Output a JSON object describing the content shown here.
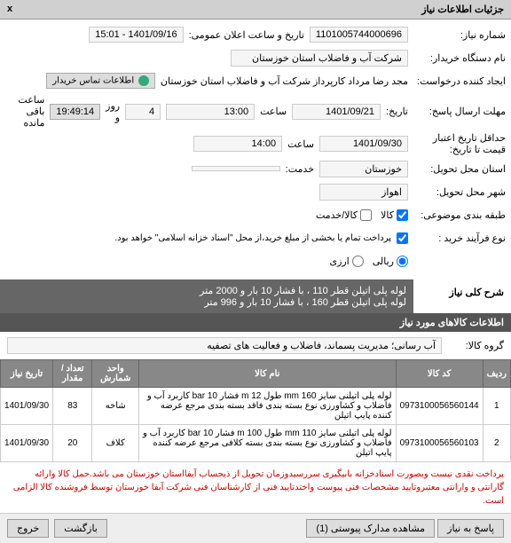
{
  "header": {
    "title": "جزئیات اطلاعات نیاز",
    "close": "x"
  },
  "fields": {
    "need_no_label": "شماره نیاز:",
    "need_no": "1101005744000696",
    "announce_label": "تاریخ و ساعت اعلان عمومی:",
    "announce_val": "1401/09/16 - 15:01",
    "buyer_org_label": "نام دستگاه خریدار:",
    "buyer_org": "شرکت آب و فاضلاب استان خوزستان",
    "creator_label": "ایجاد کننده درخواست:",
    "creator": "مجد رضا مرداد کارپرداز شرکت آب و فاضلاب استان خوزستان",
    "contact_label": "اطلاعات تماس خریدار",
    "deadline_label": "مهلت ارسال پاسخ:",
    "deadline_sep": "تاریخ:",
    "deadline_date": "1401/09/21",
    "time_label": "ساعت",
    "deadline_time": "13:00",
    "day_label": "روز و",
    "days": "4",
    "rem_time": "19:49:14",
    "remain_label": "ساعت باقی مانده",
    "valid_label": "حداقل تاریخ اعتبار",
    "valid_sub": "قیمت تا تاریخ:",
    "valid_date": "1401/09/30",
    "valid_time": "14:00",
    "province_label": "استان محل تحویل:",
    "province": "خوزستان",
    "service_label": "خدمت:",
    "city_label": "شهر محل تحویل:",
    "city": "اهواز",
    "category_label": "طبقه بندی موضوعی:",
    "cat_kala": "کالا",
    "cat_service": "کالا/خدمت",
    "process_label": "نوع فرآیند خرید :",
    "process_note": "پرداخت تمام یا بخشی از مبلغ خرید،از محل \"اسناد خزانه اسلامی\" خواهد بود.",
    "opt_money": "ریالی",
    "opt_curr": "ارزی",
    "desc_label": "شرح کلی نیاز",
    "desc_text": "لوله پلی اتیلن قطر 110 ، با فشار 10 بار و 2000 متر\nلوله پلی اتیلن قطر 160 ، با فشار 10 بار و 996 متر",
    "items_header": "اطلاعات کالاهای مورد نیاز",
    "group_label": "گروه کالا:",
    "group_val": "آب رسانی؛ مدیریت پسماند، فاضلاب و فعالیت های تصفیه"
  },
  "table": {
    "cols": [
      "ردیف",
      "کد کالا",
      "نام کالا",
      "واحد شمارش",
      "تعداد / مقدار",
      "تاریخ نیاز"
    ],
    "rows": [
      [
        "1",
        "0973100056560144",
        "لوله پلی اتیلنی سایز 160 mm طول 12 m فشار 10 bar کاربرد آب و فاضلاب و کشاورزی نوع بسته بندی فاقد بسته بندی مرجع عرضه کننده پایپ اتیلن",
        "شاخه",
        "83",
        "1401/09/30"
      ],
      [
        "2",
        "0973100056560103",
        "لوله پلی اتیلنی سایز 110 mm طول 100 m فشار 10 bar کاربرد آب و فاضلاب و کشاورزی نوع بسته بندی بسته کلافی مرجع عرضه کننده پایپ اتیلن",
        "کلاف",
        "20",
        "1401/09/30"
      ]
    ]
  },
  "note": "پرداخت نقدی نیست وبصورت اسنادخزانه بابیگیری سررسیدوزمان تحویل از ذیحساب آبفااستان خوزستان می باشد.حمل کالا وارائه گارانتی و وارانتی معتبروتایید مشخصات فنی پیوست واختدتایید فنی از کارشناسان فنی شرکت آبفا خوزستان توسط فروشنده کالا الزامی است.",
  "footer": {
    "respond": "پاسخ به نیاز",
    "docs": "مشاهده مدارک پیوستی  (1)",
    "back": "بازگشت",
    "exit": "خروج"
  }
}
